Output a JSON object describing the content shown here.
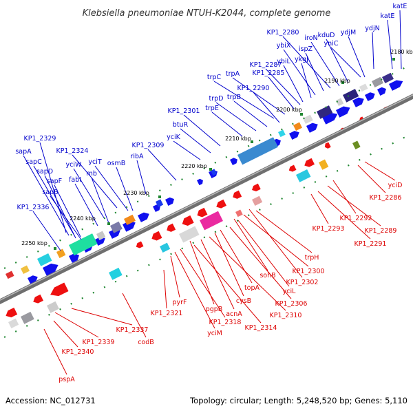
{
  "title": "Klebsiella pneumoniae NTUH-K2044, complete genome",
  "footer": {
    "accession": "Accession: NC_012731",
    "summary": "Topology: circular; Length: 5,248,520 bp; Genes: 5,110"
  },
  "colors": {
    "forward_label": "#0000cc",
    "reverse_label": "#dd0000",
    "forward_arrow": "#1010ee",
    "reverse_arrow": "#ee1010",
    "backbone": "#777777",
    "tick": "#228833"
  },
  "scale_ticks": [
    "2180 kbp",
    "2190 kbp",
    "2200 kbp",
    "2210 kbp",
    "2220 kbp",
    "2230 kbp",
    "2240 kbp",
    "2250 kbp"
  ],
  "forward_genes": [
    "katE",
    "katE",
    "ydjN",
    "ydjM",
    "yniC",
    "kduD",
    "iroN",
    "KP1_2280",
    "ispZ",
    "ybiX",
    "ykgJ",
    "ybiL",
    "KP1_2287",
    "KP1_2285",
    "trpA",
    "trpC",
    "KP1_2290",
    "trpB",
    "trpD",
    "trpE",
    "KP1_2301",
    "btuR",
    "yciK",
    "KP1_2309",
    "ribA",
    "KP1_2324",
    "yciT",
    "osmB",
    "KP1_2329",
    "sapA",
    "yciW",
    "rnb",
    "sapC",
    "fabI",
    "sapD",
    "sapF",
    "sapB",
    "KP1_2336"
  ],
  "reverse_genes": [
    "yciD",
    "KP1_2286",
    "KP1_2292",
    "KP1_2289",
    "KP1_2293",
    "KP1_2291",
    "trpH",
    "KP1_2300",
    "sohB",
    "KP1_2302",
    "yciL",
    "topA",
    "KP1_2306",
    "cysB",
    "KP1_2310",
    "acnA",
    "pgpB",
    "KP1_2314",
    "KP1_2318",
    "pyrF",
    "yciM",
    "KP1_2321",
    "KP1_2337",
    "codB",
    "KP1_2339",
    "KP1_2340",
    "pspA"
  ]
}
